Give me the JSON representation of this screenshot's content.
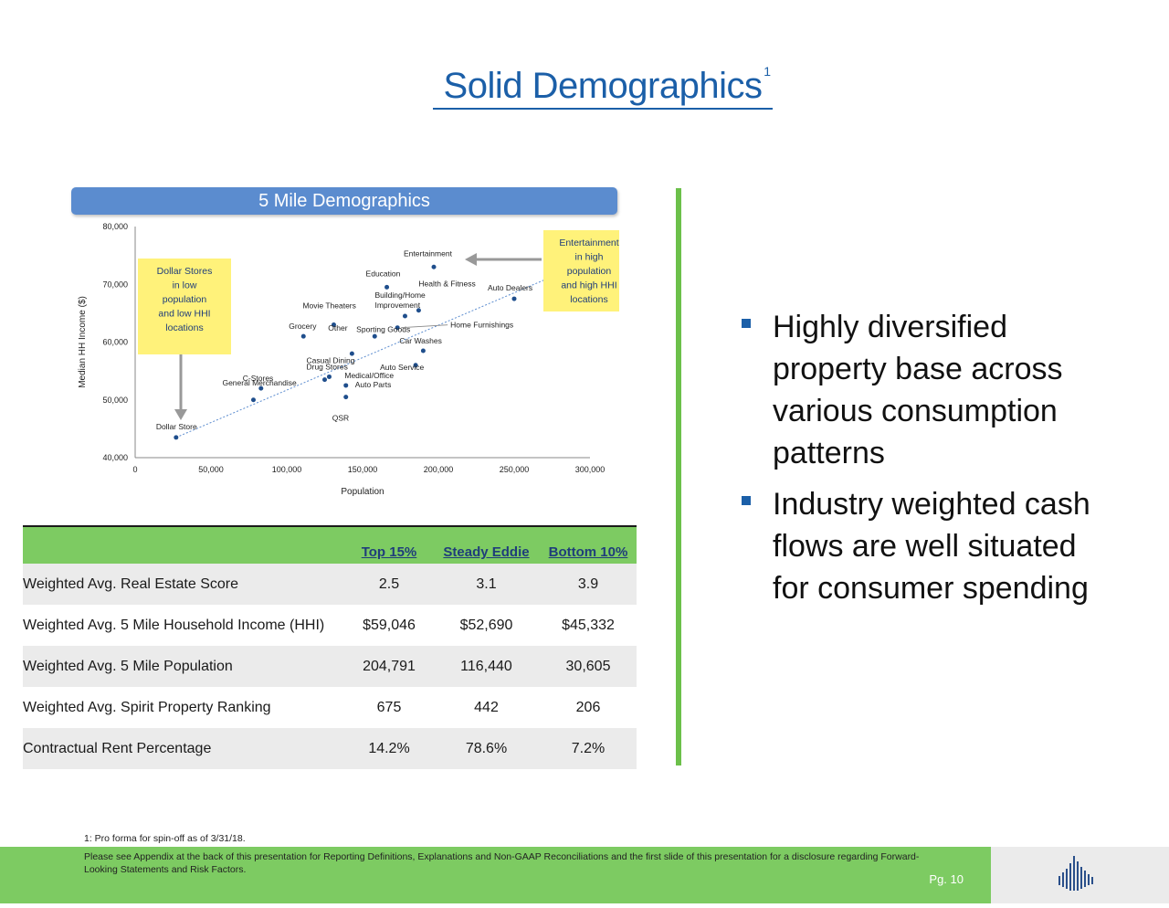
{
  "title": "Solid Demographics",
  "title_superscript": "1",
  "chart_header": "5 Mile Demographics",
  "chart_data": {
    "type": "scatter",
    "title": "5 Mile Demographics",
    "xlabel": "Population",
    "ylabel": "Median HH Income ($)",
    "xlim": [
      0,
      300000
    ],
    "ylim": [
      40000,
      80000
    ],
    "x_ticks": [
      "0",
      "50,000",
      "100,000",
      "150,000",
      "200,000",
      "250,000",
      "300,000"
    ],
    "y_ticks": [
      "40,000",
      "50,000",
      "60,000",
      "70,000",
      "80,000"
    ],
    "points": [
      {
        "label": "Dollar Store",
        "x": 27000,
        "y": 43500
      },
      {
        "label": "General Merchandise",
        "x": 78000,
        "y": 50000
      },
      {
        "label": "C-Stores",
        "x": 83000,
        "y": 52000
      },
      {
        "label": "Grocery",
        "x": 111000,
        "y": 61000
      },
      {
        "label": "Movie Theaters",
        "x": 131000,
        "y": 63000
      },
      {
        "label": "Casual Dining",
        "x": 125000,
        "y": 53500
      },
      {
        "label": "Drug Stores",
        "x": 128000,
        "y": 54000
      },
      {
        "label": "QSR",
        "x": 139000,
        "y": 50500
      },
      {
        "label": "Auto Parts",
        "x": 139000,
        "y": 52500
      },
      {
        "label": "Medical/Office",
        "x": 143000,
        "y": 58000
      },
      {
        "label": "Other",
        "x": 158000,
        "y": 61000
      },
      {
        "label": "Sporting Goods",
        "x": 173000,
        "y": 62500
      },
      {
        "label": "Education",
        "x": 166000,
        "y": 69500
      },
      {
        "label": "Building/Home Improvement",
        "x": 178000,
        "y": 64500
      },
      {
        "label": "Health & Fitness",
        "x": 187000,
        "y": 65500
      },
      {
        "label": "Entertainment",
        "x": 197000,
        "y": 73000
      },
      {
        "label": "Car Washes",
        "x": 190000,
        "y": 58500
      },
      {
        "label": "Auto Service",
        "x": 185000,
        "y": 56000
      },
      {
        "label": "Auto Dealers",
        "x": 250000,
        "y": 67500
      }
    ],
    "annotations": [
      {
        "text": "Dollar Stores in low population and low HHI locations"
      },
      {
        "text": "Entertainment in high population and high HHI locations"
      },
      {
        "text": "Home Furnishings"
      }
    ],
    "trendline": true,
    "grid": false
  },
  "table": {
    "headers": [
      "Top 15%",
      "Steady Eddie",
      "Bottom 10%"
    ],
    "rows": [
      {
        "label": "Weighted Avg. Real Estate Score",
        "values": [
          "2.5",
          "3.1",
          "3.9"
        ]
      },
      {
        "label": "Weighted Avg. 5 Mile Household Income (HHI)",
        "values": [
          "$59,046",
          "$52,690",
          "$45,332"
        ]
      },
      {
        "label": "Weighted Avg. 5 Mile Population",
        "values": [
          "204,791",
          "116,440",
          "30,605"
        ]
      },
      {
        "label": "Weighted Avg. Spirit Property Ranking",
        "values": [
          "675",
          "442",
          "206"
        ]
      },
      {
        "label": "Contractual Rent Percentage",
        "values": [
          "14.2%",
          "78.6%",
          "7.2%"
        ]
      }
    ]
  },
  "bullets": [
    "Highly diversified property base across various consumption patterns",
    "Industry weighted cash flows are well situated for consumer spending"
  ],
  "footnote": "1: Pro forma for spin-off as of 3/31/18.",
  "footer_text": "Please see Appendix at the back of this presentation for Reporting Definitions, Explanations and Non-GAAP Reconciliations and the first slide of this presentation for a disclosure regarding Forward-Looking Statements and Risk Factors.",
  "page_number": "Pg. 10",
  "colors": {
    "accent": "#1b5fa8",
    "green": "#7dcb62",
    "highlight": "#fff27a",
    "point": "#1f4e8c"
  }
}
